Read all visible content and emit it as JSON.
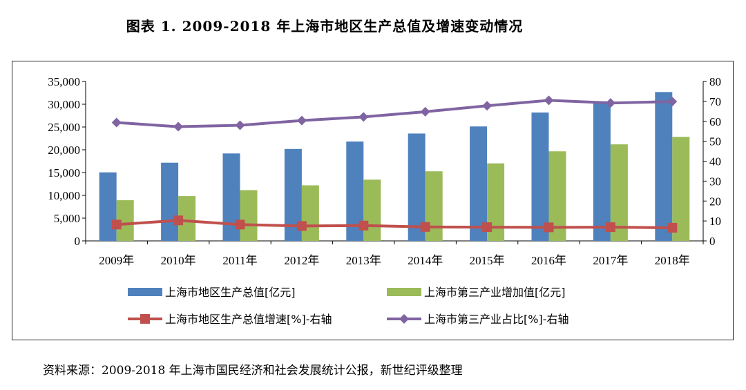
{
  "title": "图表 1. 2009-2018 年上海市地区生产总值及增速变动情况",
  "source": "资料来源：2009-2018 年上海市国民经济和社会发展统计公报，新世纪评级整理",
  "chart_data": {
    "type": "bar",
    "categories": [
      "2009年",
      "2010年",
      "2011年",
      "2012年",
      "2013年",
      "2014年",
      "2015年",
      "2016年",
      "2017年",
      "2018年"
    ],
    "left_axis": {
      "ylim": [
        0,
        35000
      ],
      "ticks": [
        0,
        5000,
        10000,
        15000,
        20000,
        25000,
        30000,
        35000
      ],
      "tick_labels": [
        "0",
        "5,000",
        "10,000",
        "15,000",
        "20,000",
        "25,000",
        "30,000",
        "35,000"
      ]
    },
    "right_axis": {
      "ylim": [
        0,
        80
      ],
      "ticks": [
        0,
        10,
        20,
        30,
        40,
        50,
        60,
        70,
        80
      ],
      "tick_labels": [
        "0",
        "10",
        "20",
        "30",
        "40",
        "50",
        "60",
        "70",
        "80"
      ]
    },
    "series": [
      {
        "name": "上海市地区生产总值[亿元]",
        "type": "bar",
        "axis": "left",
        "color": "#4F81BD",
        "values": [
          15046,
          17166,
          19196,
          20182,
          21818,
          23568,
          25123,
          28179,
          30633,
          32680
        ]
      },
      {
        "name": "上海市第三产业增加值[亿元]",
        "type": "bar",
        "axis": "left",
        "color": "#9BBB59",
        "values": [
          8930,
          9834,
          11143,
          12199,
          13445,
          15275,
          17022,
          19662,
          21192,
          22843
        ]
      },
      {
        "name": "上海市地区生产总值增速[%]-右轴",
        "type": "line",
        "axis": "right",
        "color": "#C0504D",
        "values": [
          8.2,
          10.3,
          8.2,
          7.5,
          7.7,
          7.0,
          6.9,
          6.8,
          6.9,
          6.6
        ]
      },
      {
        "name": "上海市第三产业占比[%]-右轴",
        "type": "line",
        "axis": "right",
        "color": "#8064A2",
        "values": [
          59.4,
          57.3,
          58.0,
          60.4,
          62.2,
          64.8,
          67.8,
          70.5,
          69.2,
          69.9
        ]
      }
    ]
  }
}
